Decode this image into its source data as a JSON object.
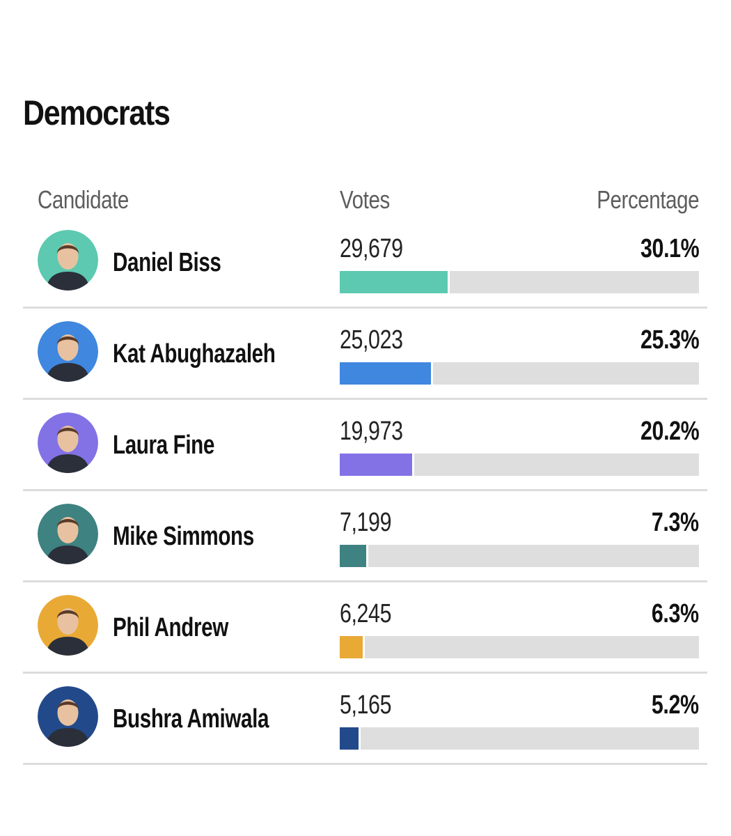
{
  "section": {
    "title": "Democrats"
  },
  "table": {
    "headers": {
      "candidate": "Candidate",
      "votes": "Votes",
      "percentage": "Percentage"
    },
    "rows": [
      {
        "name": "Daniel Biss",
        "votes": "29,679",
        "percentage": "30.1%",
        "share": 30.1,
        "color": "#5cc9b0",
        "avatar_icon": "candidate-photo-icon"
      },
      {
        "name": "Kat Abughazaleh",
        "votes": "25,023",
        "percentage": "25.3%",
        "share": 25.3,
        "color": "#3f87df",
        "avatar_icon": "candidate-photo-icon"
      },
      {
        "name": "Laura Fine",
        "votes": "19,973",
        "percentage": "20.2%",
        "share": 20.2,
        "color": "#8272e6",
        "avatar_icon": "candidate-photo-icon"
      },
      {
        "name": "Mike Simmons",
        "votes": "7,199",
        "percentage": "7.3%",
        "share": 7.3,
        "color": "#3e8281",
        "avatar_icon": "candidate-photo-icon"
      },
      {
        "name": "Phil Andrew",
        "votes": "6,245",
        "percentage": "6.3%",
        "share": 6.3,
        "color": "#e9a935",
        "avatar_icon": "candidate-photo-icon"
      },
      {
        "name": "Bushra Amiwala",
        "votes": "5,165",
        "percentage": "5.2%",
        "share": 5.2,
        "color": "#224a8b",
        "avatar_icon": "candidate-photo-icon"
      }
    ]
  }
}
